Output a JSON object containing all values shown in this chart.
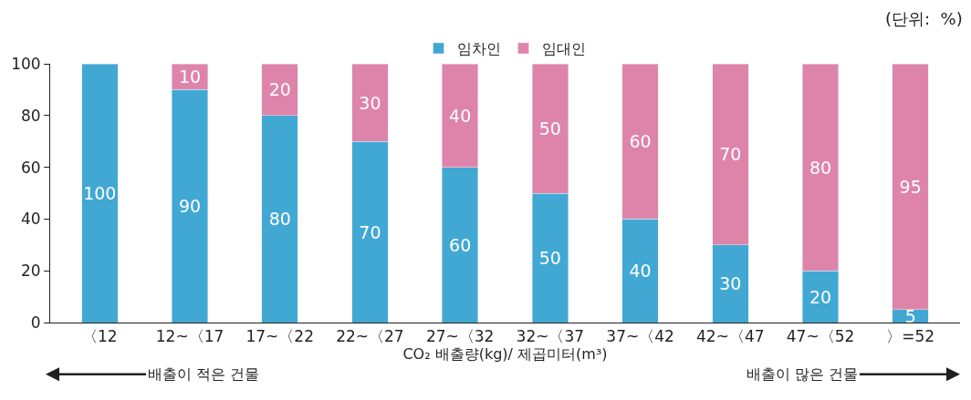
{
  "chart_data": {
    "type": "bar",
    "stacked": true,
    "xlabel": "CO₂ 배출량(kg)/ 제곱미터(m³)",
    "categories": [
      "〈12",
      "12~〈17",
      "17~〈22",
      "22~〈27",
      "27~〈32",
      "32~〈37",
      "37~〈42",
      "42~〈47",
      "47~〈52",
      "〉=52"
    ],
    "series": [
      {
        "name": "임차인",
        "color": "#41a8d4",
        "values": [
          100,
          90,
          80,
          70,
          60,
          50,
          40,
          30,
          20,
          5
        ],
        "value_labels": [
          "100",
          "90",
          "80",
          "70",
          "60",
          "50",
          "40",
          "30",
          "20",
          "5"
        ]
      },
      {
        "name": "임대인",
        "color": "#de84ab",
        "values": [
          null,
          10,
          20,
          30,
          40,
          50,
          60,
          70,
          80,
          95
        ],
        "value_labels": [
          null,
          "10",
          "20",
          "30",
          "40",
          "50",
          "60",
          "70",
          "80",
          "95"
        ]
      }
    ],
    "ylim": [
      0,
      100
    ],
    "yticks": [
      0,
      20,
      40,
      60,
      80,
      100
    ],
    "legend": "top",
    "annotations": [
      "(단위:  %)",
      "배출이 적은 건물",
      "배출이 많은 건물"
    ]
  }
}
